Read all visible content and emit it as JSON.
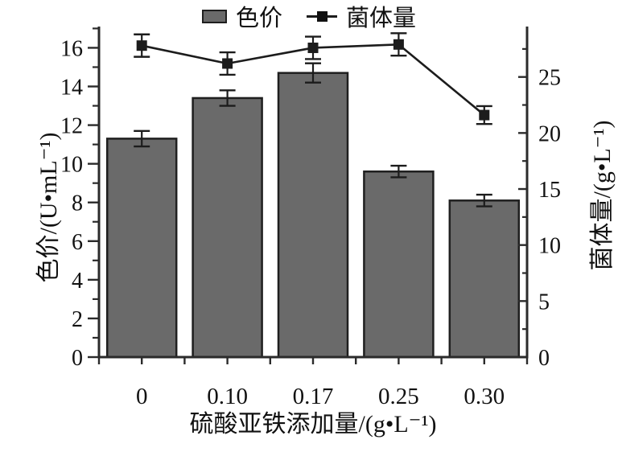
{
  "figure": {
    "background": "#ffffff"
  },
  "chart_data": {
    "type": "bar",
    "title": "",
    "categories": [
      "0",
      "0.10",
      "0.17",
      "0.25",
      "0.30"
    ],
    "series": [
      {
        "name": "色价",
        "type": "bar",
        "axis": "left",
        "values": [
          11.3,
          13.4,
          14.7,
          9.6,
          8.1
        ],
        "errors": [
          0.4,
          0.4,
          0.5,
          0.3,
          0.3
        ]
      },
      {
        "name": "菌体量",
        "type": "line",
        "axis": "right",
        "values": [
          27.8,
          26.2,
          27.6,
          27.9,
          21.6
        ],
        "errors": [
          1.0,
          1.0,
          1.0,
          1.0,
          0.8
        ]
      }
    ],
    "xlabel": "硫酸亚铁添加量/(g•L⁻¹)",
    "ylabel_left": "色价/(U•mL⁻¹)",
    "ylabel_right": "菌体量/(g•L⁻¹)",
    "y_left": {
      "min": 0,
      "max": 17.1,
      "major_ticks": [
        0,
        2,
        4,
        6,
        8,
        10,
        12,
        14,
        16
      ],
      "minor_ticks": [
        1,
        3,
        5,
        7,
        9,
        11,
        13,
        15,
        17
      ]
    },
    "y_right": {
      "min": 0,
      "max": 29.5,
      "major_ticks": [
        0,
        5,
        10,
        15,
        20,
        25
      ],
      "minor_ticks": [
        2.5,
        7.5,
        12.5,
        17.5,
        22.5,
        27.5
      ]
    },
    "grid": false,
    "legend_position": "top-center",
    "colors": {
      "bar_fill": "#6a6a6a",
      "bar_edge": "#1f1f1f",
      "line": "#1c1c1c",
      "axis": "#2b2b2b",
      "text": "#111111",
      "background": "#ffffff"
    }
  }
}
